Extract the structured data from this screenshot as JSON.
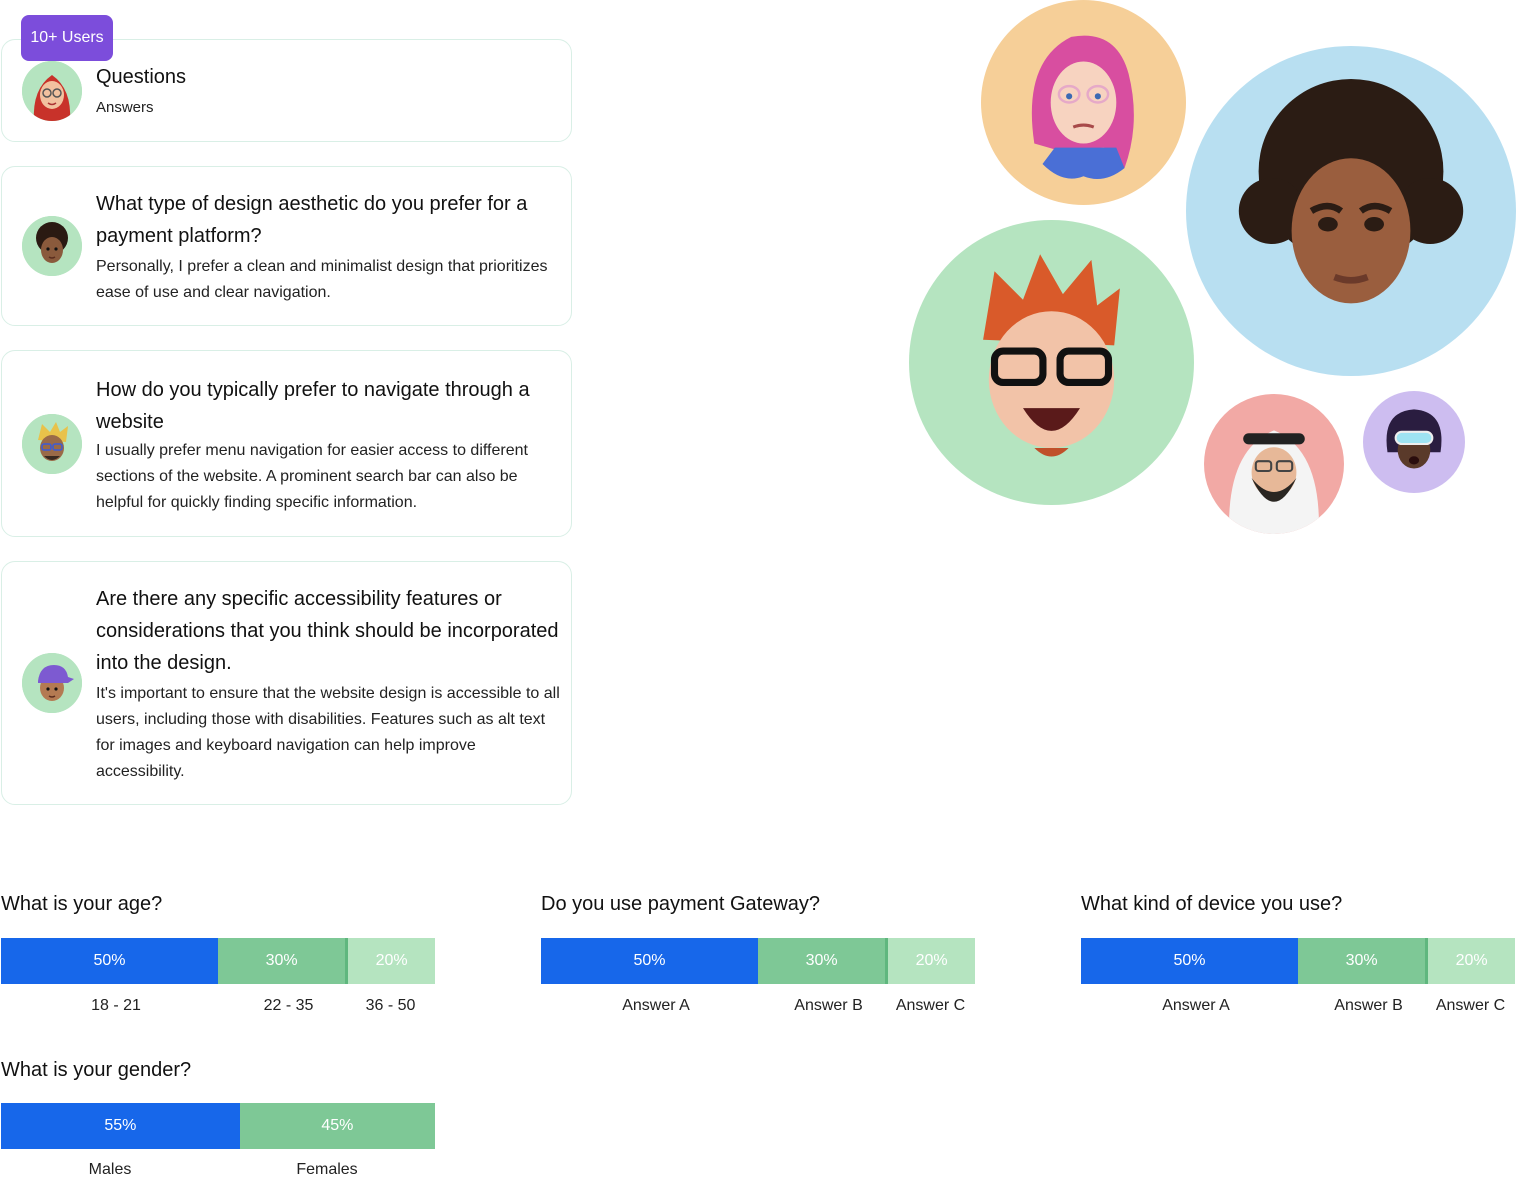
{
  "badge": {
    "label": "10+ Users"
  },
  "cards": [
    {
      "question": "Questions",
      "answer": "Answers",
      "avatar": "avatar-hijab-glasses"
    },
    {
      "question": "What type of design aesthetic do you prefer for a payment platform?",
      "answer": " Personally, I prefer a clean and minimalist design that prioritizes ease of use and clear navigation.",
      "avatar": "avatar-curly-hair"
    },
    {
      "question": "How do you typically prefer to navigate through a website",
      "answer": "I usually prefer menu navigation for easier access to different sections of the website. A prominent search bar can also be helpful for quickly finding specific information.",
      "avatar": "avatar-blonde-glasses"
    },
    {
      "question": "Are there any specific accessibility features or considerations that you think should be incorporated into the design.",
      "answer": "It's important to ensure that the website design is accessible to all users, including those with disabilities. Features such as alt text for images and keyboard navigation can help improve accessibility.",
      "avatar": "avatar-purple-cap"
    }
  ],
  "bubbles": [
    {
      "name": "pink-hair-memoji",
      "bg": "#f6cf98"
    },
    {
      "name": "curly-hair-memoji",
      "bg": "#b8dff1"
    },
    {
      "name": "red-hair-glasses-memoji",
      "bg": "#b5e4c0"
    },
    {
      "name": "keffiyeh-memoji",
      "bg": "#f2a9a5"
    },
    {
      "name": "vr-goggles-memoji",
      "bg": "#cdbdf0"
    }
  ],
  "colors": {
    "blue": "#1767ea",
    "green": "#7ec896",
    "light_green": "#b5e4c0",
    "purple": "#7c4ddb"
  },
  "polls": {
    "age": {
      "title": "What is your age?",
      "segments": [
        {
          "pct": "50%",
          "label": "18 - 21",
          "value": 50
        },
        {
          "pct": "30%",
          "label": "22 - 35",
          "value": 30
        },
        {
          "pct": "20%",
          "label": "36 - 50",
          "value": 20
        }
      ]
    },
    "gateway": {
      "title": "Do you use payment Gateway?",
      "segments": [
        {
          "pct": "50%",
          "label": "Answer A",
          "value": 50
        },
        {
          "pct": "30%",
          "label": "Answer B",
          "value": 30
        },
        {
          "pct": "20%",
          "label": "Answer C",
          "value": 20
        }
      ]
    },
    "device": {
      "title": "What kind of device you use?",
      "segments": [
        {
          "pct": "50%",
          "label": "Answer A",
          "value": 50
        },
        {
          "pct": "30%",
          "label": "Answer B",
          "value": 30
        },
        {
          "pct": "20%",
          "label": "Answer C",
          "value": 20
        }
      ]
    },
    "gender": {
      "title": "What is your gender?",
      "segments": [
        {
          "pct": "55%",
          "label": "Males",
          "value": 55
        },
        {
          "pct": "45%",
          "label": "Females",
          "value": 45
        }
      ]
    }
  }
}
